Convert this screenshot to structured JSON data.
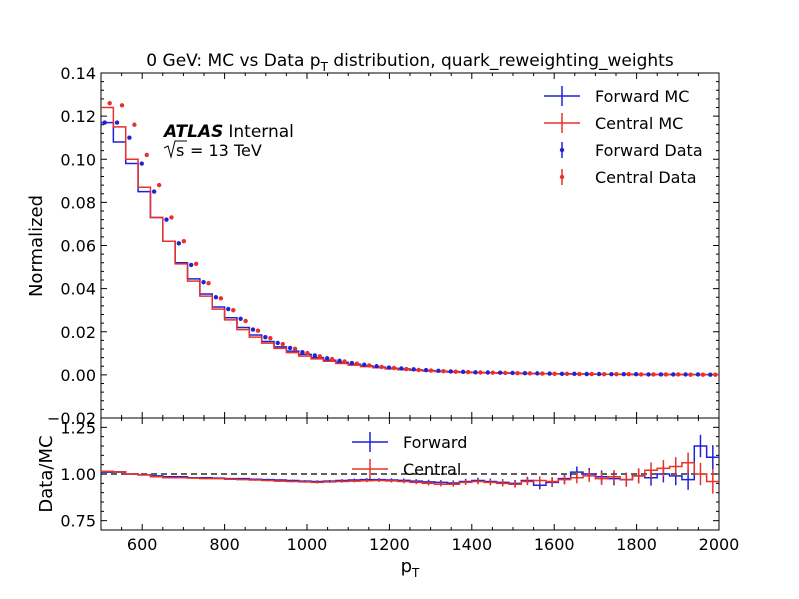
{
  "chart_data": [
    {
      "type": "line",
      "panel": "main",
      "title": "0 GeV: MC vs Data p_T distribution, quark_reweighting_weights",
      "title_parts": {
        "pre": "0 GeV: MC vs Data p",
        "sub": "T",
        "post": " distribution, quark_reweighting_weights"
      },
      "xlabel": "",
      "ylabel": "Normalized",
      "xlim": [
        500,
        2000
      ],
      "ylim": [
        -0.02,
        0.14
      ],
      "yticks": [
        "−0.02",
        "0.00",
        "0.02",
        "0.04",
        "0.06",
        "0.08",
        "0.10",
        "0.12",
        "0.14"
      ],
      "yticks_values": [
        -0.02,
        0,
        0.02,
        0.04,
        0.06,
        0.08,
        0.1,
        0.12,
        0.14
      ],
      "annotation": {
        "atlas": "ATLAS",
        "internal": "Internal",
        "energy_sym": "s",
        "energy_eq": "= 13 TeV"
      },
      "legend": {
        "position": "top-right",
        "entries": [
          "Forward MC",
          "Central MC",
          "Forward Data",
          "Central Data"
        ]
      },
      "bin_edges": [
        500,
        530,
        560,
        590,
        620,
        650,
        680,
        710,
        740,
        770,
        800,
        830,
        860,
        890,
        920,
        950,
        980,
        1010,
        1040,
        1070,
        1100,
        1130,
        1160,
        1190,
        1220,
        1250,
        1280,
        1310,
        1340,
        1370,
        1400,
        1430,
        1460,
        1490,
        1520,
        1550,
        1580,
        1610,
        1640,
        1670,
        1700,
        1730,
        1760,
        1790,
        1820,
        1850,
        1880,
        1910,
        1940,
        1970,
        2000
      ],
      "series": [
        {
          "name": "Forward MC",
          "style": "step",
          "color": "#1f23d6",
          "values": [
            0.117,
            0.108,
            0.098,
            0.085,
            0.073,
            0.062,
            0.052,
            0.0445,
            0.0375,
            0.0315,
            0.0265,
            0.022,
            0.0185,
            0.0155,
            0.013,
            0.011,
            0.0095,
            0.008,
            0.0068,
            0.0058,
            0.0049,
            0.0042,
            0.0036,
            0.0031,
            0.0027,
            0.0023,
            0.002,
            0.0017,
            0.0015,
            0.0013,
            0.0011,
            0.001,
            0.0009,
            0.0008,
            0.0007,
            0.0006,
            0.0005,
            0.0005,
            0.0004,
            0.0004,
            0.0003,
            0.0003,
            0.0003,
            0.0002,
            0.0002,
            0.0002,
            0.0002,
            0.0002,
            0.0001,
            0.0001
          ]
        },
        {
          "name": "Central MC",
          "style": "step",
          "color": "#e8312a",
          "values": [
            0.124,
            0.115,
            0.1,
            0.087,
            0.073,
            0.062,
            0.0515,
            0.0435,
            0.0365,
            0.0305,
            0.0255,
            0.021,
            0.0175,
            0.0147,
            0.0123,
            0.0103,
            0.0087,
            0.0074,
            0.0063,
            0.0053,
            0.0045,
            0.0038,
            0.0033,
            0.0028,
            0.0024,
            0.0021,
            0.0018,
            0.0015,
            0.0013,
            0.0011,
            0.001,
            0.0009,
            0.0008,
            0.0007,
            0.0006,
            0.0005,
            0.0005,
            0.0004,
            0.0004,
            0.0003,
            0.0003,
            0.0003,
            0.0002,
            0.0002,
            0.0002,
            0.0002,
            0.0001,
            0.0001,
            0.0001,
            0.0001
          ]
        },
        {
          "name": "Forward Data",
          "style": "points",
          "color": "#1f23d6",
          "values": [
            0.117,
            0.117,
            0.11,
            0.098,
            0.085,
            0.072,
            0.061,
            0.051,
            0.043,
            0.036,
            0.0305,
            0.026,
            0.021,
            0.0175,
            0.0148,
            0.0125,
            0.0105,
            0.009,
            0.0077,
            0.0065,
            0.0055,
            0.0047,
            0.004,
            0.0034,
            0.003,
            0.0026,
            0.0022,
            0.0019,
            0.0016,
            0.0014,
            0.0012,
            0.0011,
            0.001,
            0.0009,
            0.0008,
            0.0007,
            0.0006,
            0.0005,
            0.0005,
            0.0004,
            0.0004,
            0.0003,
            0.0003,
            0.0003,
            0.0002,
            0.0002,
            0.0002,
            0.0002,
            0.0002,
            0.0001
          ]
        },
        {
          "name": "Central Data",
          "style": "points",
          "color": "#e8312a",
          "values": [
            0.126,
            0.125,
            0.116,
            0.102,
            0.088,
            0.073,
            0.062,
            0.0515,
            0.0425,
            0.0355,
            0.03,
            0.025,
            0.0205,
            0.017,
            0.0143,
            0.0121,
            0.0101,
            0.0086,
            0.0073,
            0.0062,
            0.0052,
            0.0044,
            0.0037,
            0.0032,
            0.0027,
            0.0023,
            0.002,
            0.0017,
            0.0015,
            0.0013,
            0.0011,
            0.001,
            0.0009,
            0.0008,
            0.0007,
            0.0006,
            0.0005,
            0.0005,
            0.0004,
            0.0004,
            0.0003,
            0.0003,
            0.0003,
            0.0002,
            0.0002,
            0.0002,
            0.0002,
            0.0001,
            0.0001,
            0.0001
          ]
        }
      ]
    },
    {
      "type": "line",
      "panel": "ratio",
      "xlabel_parts": {
        "base": "p",
        "sub": "T"
      },
      "ylabel": "Data/MC",
      "xlim": [
        500,
        2000
      ],
      "ylim": [
        0.7,
        1.3
      ],
      "xticks": [
        "600",
        "800",
        "1000",
        "1200",
        "1400",
        "1600",
        "1800",
        "2000"
      ],
      "xticks_values": [
        600,
        800,
        1000,
        1200,
        1400,
        1600,
        1800,
        2000
      ],
      "yticks": [
        "0.75",
        "1.00",
        "1.25"
      ],
      "yticks_values": [
        0.75,
        1.0,
        1.25
      ],
      "reference_line": 1.0,
      "legend": {
        "position": "top-center",
        "entries": [
          "Forward",
          "Central"
        ]
      },
      "bin_edges": [
        500,
        530,
        560,
        590,
        620,
        650,
        680,
        710,
        740,
        770,
        800,
        830,
        860,
        890,
        920,
        950,
        980,
        1010,
        1040,
        1070,
        1100,
        1130,
        1160,
        1190,
        1220,
        1250,
        1280,
        1310,
        1340,
        1370,
        1400,
        1430,
        1460,
        1490,
        1520,
        1550,
        1580,
        1610,
        1640,
        1670,
        1700,
        1730,
        1760,
        1790,
        1820,
        1850,
        1880,
        1910,
        1940,
        1970,
        2000
      ],
      "series": [
        {
          "name": "Forward",
          "style": "step",
          "color": "#1f23d6",
          "values": [
            1.01,
            1.01,
            1.0,
            0.995,
            0.99,
            0.985,
            0.985,
            0.98,
            0.98,
            0.978,
            0.975,
            0.975,
            0.972,
            0.97,
            0.968,
            0.965,
            0.962,
            0.96,
            0.962,
            0.965,
            0.968,
            0.97,
            0.97,
            0.968,
            0.966,
            0.962,
            0.958,
            0.955,
            0.952,
            0.96,
            0.965,
            0.96,
            0.955,
            0.95,
            0.965,
            0.94,
            0.955,
            0.975,
            1.01,
            1.0,
            0.985,
            0.975,
            0.97,
            0.99,
            0.98,
            1.0,
            0.99,
            0.97,
            1.15,
            1.09
          ],
          "errors": [
            0.002,
            0.002,
            0.002,
            0.002,
            0.002,
            0.002,
            0.002,
            0.003,
            0.003,
            0.003,
            0.003,
            0.003,
            0.004,
            0.004,
            0.004,
            0.005,
            0.005,
            0.006,
            0.006,
            0.007,
            0.007,
            0.008,
            0.008,
            0.009,
            0.01,
            0.01,
            0.011,
            0.012,
            0.013,
            0.014,
            0.015,
            0.016,
            0.017,
            0.018,
            0.02,
            0.022,
            0.024,
            0.026,
            0.03,
            0.032,
            0.034,
            0.036,
            0.038,
            0.04,
            0.042,
            0.045,
            0.05,
            0.055,
            0.06,
            0.065
          ]
        },
        {
          "name": "Central",
          "style": "step",
          "color": "#e8312a",
          "values": [
            1.015,
            1.012,
            1.0,
            0.995,
            0.985,
            0.98,
            0.98,
            0.978,
            0.975,
            0.975,
            0.972,
            0.97,
            0.968,
            0.965,
            0.962,
            0.96,
            0.958,
            0.955,
            0.958,
            0.96,
            0.962,
            0.964,
            0.965,
            0.963,
            0.96,
            0.955,
            0.95,
            0.945,
            0.945,
            0.955,
            0.96,
            0.955,
            0.95,
            0.945,
            0.96,
            0.965,
            0.96,
            0.97,
            0.98,
            0.99,
            0.975,
            0.985,
            0.97,
            0.99,
            1.02,
            1.03,
            1.04,
            1.06,
            1.0,
            0.96
          ],
          "errors": [
            0.002,
            0.002,
            0.002,
            0.002,
            0.002,
            0.002,
            0.002,
            0.003,
            0.003,
            0.003,
            0.003,
            0.003,
            0.004,
            0.004,
            0.004,
            0.005,
            0.005,
            0.006,
            0.006,
            0.007,
            0.007,
            0.008,
            0.008,
            0.009,
            0.01,
            0.01,
            0.011,
            0.012,
            0.013,
            0.014,
            0.015,
            0.016,
            0.017,
            0.018,
            0.02,
            0.022,
            0.024,
            0.026,
            0.03,
            0.032,
            0.034,
            0.036,
            0.038,
            0.04,
            0.042,
            0.045,
            0.05,
            0.055,
            0.06,
            0.065
          ]
        }
      ]
    }
  ]
}
